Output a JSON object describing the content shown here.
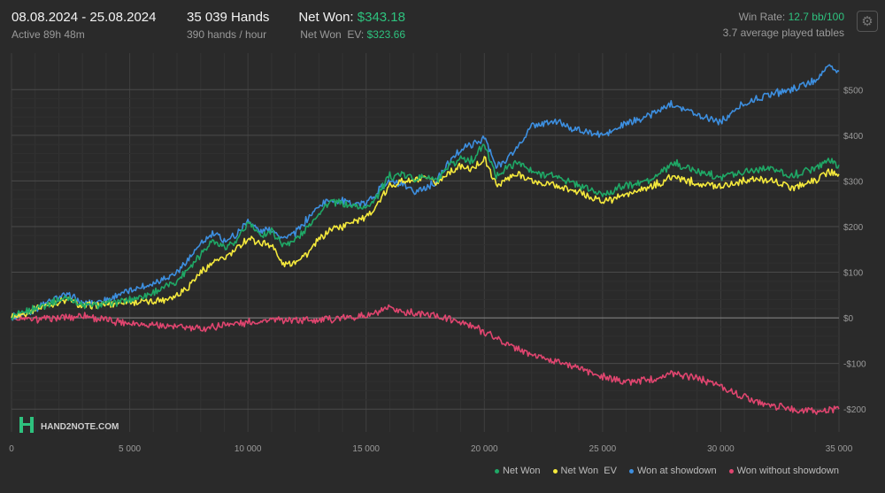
{
  "header": {
    "date_range": "08.08.2024 - 25.08.2024",
    "active": "Active 89h 48m",
    "hands": "35 039 Hands",
    "hands_per_hour": "390 hands / hour",
    "net_won_label": "Net Won:",
    "net_won_value": "$343.18",
    "net_won_ev_label": "Net Won  EV:",
    "net_won_ev_value": "$323.66",
    "win_rate_label": "Win Rate:",
    "win_rate_value": "12.7 bb/100",
    "tables": "3.7 average played tables",
    "settings_icon": "gear-icon"
  },
  "watermark": {
    "logo_icon": "hand2note-logo-icon",
    "text": "HAND2NOTE.COM"
  },
  "colors": {
    "net_won": "#1fa866",
    "net_won_ev": "#f5e93c",
    "won_at_showdown": "#3d8fe0",
    "won_without_showdown": "#e0456f",
    "grid": "#3c3c3c",
    "zero_line": "#8a8a8a"
  },
  "chart_data": {
    "type": "line",
    "xlim": [
      0,
      35000
    ],
    "ylim": [
      -250,
      580
    ],
    "x_ticks": [
      0,
      5000,
      10000,
      15000,
      20000,
      25000,
      30000,
      35000
    ],
    "x_tick_labels": [
      "0",
      "5 000",
      "10 000",
      "15 000",
      "20 000",
      "25 000",
      "30 000",
      "35 000"
    ],
    "y_ticks": [
      -200,
      -100,
      0,
      100,
      200,
      300,
      400,
      500
    ],
    "y_tick_labels": [
      "-$200",
      "-$100",
      "$0",
      "$100",
      "$200",
      "$300",
      "$400",
      "$500"
    ],
    "grid": true,
    "legend_position": "bottom-right",
    "series": [
      {
        "name": "Net Won",
        "color_key": "net_won",
        "x": [
          0,
          1000,
          2000,
          2500,
          3000,
          4000,
          5000,
          6000,
          7000,
          7500,
          8000,
          8500,
          9000,
          9500,
          10000,
          10500,
          11000,
          11500,
          12000,
          12500,
          13000,
          13500,
          14000,
          14500,
          15000,
          15500,
          16000,
          16500,
          17000,
          17500,
          18000,
          18500,
          19000,
          19500,
          20000,
          20500,
          21000,
          21500,
          22000,
          23000,
          24000,
          25000,
          26000,
          27000,
          28000,
          29000,
          30000,
          31000,
          32000,
          33000,
          34000,
          34500,
          35000
        ],
        "y": [
          0,
          20,
          40,
          45,
          25,
          30,
          40,
          55,
          80,
          110,
          140,
          170,
          155,
          165,
          210,
          180,
          190,
          160,
          170,
          195,
          230,
          255,
          250,
          245,
          240,
          270,
          310,
          315,
          305,
          310,
          300,
          330,
          350,
          345,
          380,
          310,
          330,
          340,
          320,
          310,
          290,
          270,
          290,
          300,
          340,
          320,
          310,
          320,
          330,
          310,
          330,
          345,
          335
        ]
      },
      {
        "name": "Net Won  EV",
        "color_key": "net_won_ev",
        "x": [
          0,
          1000,
          2000,
          2500,
          3000,
          4000,
          5000,
          6000,
          7000,
          7500,
          8000,
          8500,
          9000,
          9500,
          10000,
          10500,
          11000,
          11500,
          12000,
          12500,
          13000,
          13500,
          14000,
          14500,
          15000,
          15500,
          16000,
          16500,
          17000,
          17500,
          18000,
          18500,
          19000,
          19500,
          20000,
          20500,
          21000,
          21500,
          22000,
          23000,
          24000,
          25000,
          26000,
          27000,
          28000,
          29000,
          30000,
          31000,
          32000,
          33000,
          34000,
          34500,
          35000
        ],
        "y": [
          0,
          20,
          35,
          40,
          25,
          30,
          35,
          35,
          50,
          70,
          100,
          120,
          130,
          150,
          175,
          165,
          160,
          115,
          125,
          140,
          170,
          195,
          200,
          215,
          220,
          250,
          290,
          300,
          300,
          305,
          295,
          320,
          330,
          325,
          350,
          290,
          305,
          315,
          300,
          290,
          275,
          255,
          270,
          285,
          310,
          295,
          290,
          300,
          305,
          285,
          300,
          320,
          315
        ]
      },
      {
        "name": "Won at showdown",
        "color_key": "won_at_showdown",
        "x": [
          0,
          1000,
          2000,
          2500,
          3000,
          4000,
          5000,
          6000,
          7000,
          7500,
          8000,
          8500,
          9000,
          9500,
          10000,
          10500,
          11000,
          11500,
          12000,
          12500,
          13000,
          13500,
          14000,
          14500,
          15000,
          15500,
          16000,
          16500,
          17000,
          17500,
          18000,
          18500,
          19000,
          19500,
          20000,
          20500,
          21000,
          21500,
          22000,
          23000,
          24000,
          25000,
          26000,
          27000,
          28000,
          29000,
          30000,
          31000,
          32000,
          33000,
          34000,
          34500,
          35000
        ],
        "y": [
          0,
          20,
          45,
          50,
          30,
          40,
          60,
          75,
          100,
          130,
          160,
          185,
          170,
          180,
          215,
          190,
          195,
          175,
          185,
          215,
          245,
          260,
          255,
          250,
          250,
          280,
          300,
          290,
          275,
          285,
          300,
          340,
          370,
          380,
          395,
          330,
          350,
          380,
          420,
          430,
          410,
          400,
          425,
          445,
          470,
          445,
          430,
          470,
          490,
          500,
          520,
          550,
          540
        ]
      },
      {
        "name": "Won without showdown",
        "color_key": "won_without_showdown",
        "x": [
          0,
          1000,
          2000,
          3000,
          4000,
          5000,
          6000,
          7000,
          8000,
          9000,
          10000,
          11000,
          12000,
          13000,
          14000,
          15000,
          15500,
          16000,
          16500,
          17000,
          18000,
          19000,
          20000,
          21000,
          22000,
          23000,
          24000,
          25000,
          26000,
          27000,
          28000,
          29000,
          30000,
          31000,
          32000,
          33000,
          34000,
          35000
        ],
        "y": [
          0,
          -5,
          0,
          5,
          -5,
          -10,
          -15,
          -20,
          -25,
          -15,
          -10,
          -5,
          -5,
          -5,
          0,
          5,
          10,
          20,
          15,
          10,
          5,
          -10,
          -30,
          -60,
          -80,
          -95,
          -110,
          -130,
          -140,
          -135,
          -120,
          -130,
          -150,
          -175,
          -190,
          -200,
          -205,
          -200
        ]
      }
    ]
  },
  "legend": [
    {
      "label": "Net Won",
      "color_key": "net_won"
    },
    {
      "label": "Net Won  EV",
      "color_key": "net_won_ev"
    },
    {
      "label": "Won at showdown",
      "color_key": "won_at_showdown"
    },
    {
      "label": "Won without showdown",
      "color_key": "won_without_showdown"
    }
  ]
}
